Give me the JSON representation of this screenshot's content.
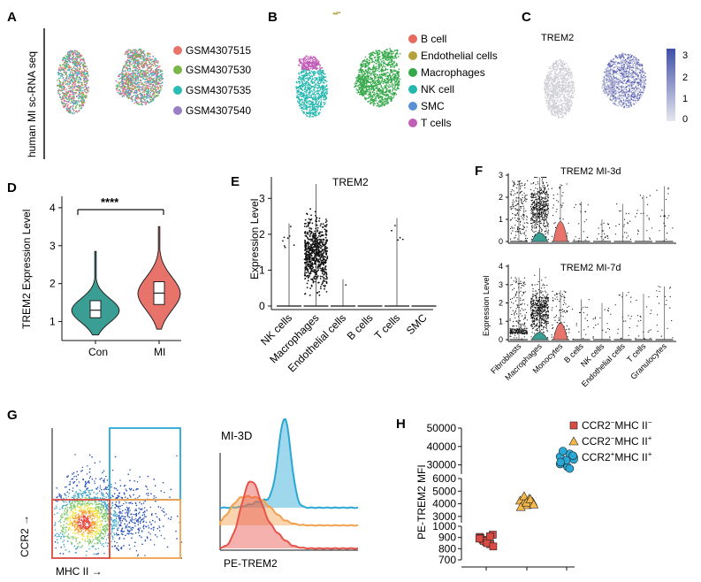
{
  "panel_labels": [
    "A",
    "B",
    "C",
    "D",
    "E",
    "F",
    "G",
    "H"
  ],
  "colors": {
    "s1": "#e8736b",
    "s2": "#7ab648",
    "s3": "#2bbcb3",
    "s4": "#9b7fc6",
    "bcell": "#e66a5e",
    "endo": "#b5a23a",
    "macro": "#35a94a",
    "nk": "#26b7b0",
    "smc": "#5b8fd6",
    "tcell": "#c25fb8",
    "con": "#3a9e95",
    "mi": "#e8736b",
    "h1": "#d84a43",
    "h2": "#f5b84a",
    "h3": "#2aa7d4"
  },
  "panel_a": {
    "ylabel": "human MI sc-RNA seq",
    "legend": [
      "GSM4307515",
      "GSM4307530",
      "GSM4307535",
      "GSM4307540"
    ]
  },
  "panel_b": {
    "legend": [
      "B cell",
      "Endothelial cells",
      "Macrophages",
      "NK cell",
      "SMC",
      "T cells"
    ]
  },
  "panel_c": {
    "title": "TREM2",
    "colorbar_ticks": [
      "3",
      "2",
      "1",
      "0"
    ]
  },
  "panel_d": {
    "ylabel": "TREM2 Expression Level",
    "significance": "****",
    "groups": [
      "Con",
      "MI"
    ]
  },
  "panel_e": {
    "title": "TREM2",
    "ylabel": "Expression Level",
    "categories": [
      "NK cells",
      "Macrophages",
      "Endothelial cells",
      "B cells",
      "T cells",
      "SMC"
    ]
  },
  "panel_f": {
    "title_top": "TREM2 MI-3d",
    "title_bottom": "TREM2 MI-7d",
    "ylabel": "Expression Level",
    "categories": [
      "Fibroblasts",
      "Macrophages",
      "Monocytes",
      "B cells",
      "NK cells",
      "Endothelial cells",
      "T cells",
      "Granulocytes"
    ]
  },
  "panel_g": {
    "ylabel": "CCR2 →",
    "xlabel": "MHC II →",
    "histo_title": "MI-3D",
    "histo_xlabel": "PE-TREM2"
  },
  "panel_h": {
    "ylabel": "PE-TREM2 MFI",
    "legend": [
      {
        "base": "CCR2",
        "sup1": "−",
        "mid": "MHC II",
        "sup2": "−"
      },
      {
        "base": "CCR2",
        "sup1": "−",
        "mid": "MHC II",
        "sup2": "+"
      },
      {
        "base": "CCR2",
        "sup1": "+",
        "mid": "MHC II",
        "sup2": "+"
      }
    ]
  },
  "chart_data": [
    {
      "type": "violin",
      "panel": "D",
      "title": "",
      "ylabel": "TREM2 Expression Level",
      "ylim": [
        0.5,
        4.3
      ],
      "yticks": [
        1,
        2,
        3,
        4
      ],
      "categories": [
        "Con",
        "MI"
      ],
      "medians": [
        1.3,
        1.75
      ],
      "q1": [
        1.1,
        1.45
      ],
      "q3": [
        1.55,
        2.05
      ],
      "min": [
        0.65,
        0.8
      ],
      "max": [
        2.85,
        3.5
      ]
    },
    {
      "type": "scatter",
      "panel": "E",
      "title": "TREM2",
      "ylabel": "Expression Level",
      "ylim": [
        0,
        3.5
      ],
      "yticks": [
        0,
        1,
        2,
        3
      ],
      "categories": [
        "NK cells",
        "Macrophages",
        "Endothelial cells",
        "B cells",
        "T cells",
        "SMC"
      ],
      "max": [
        2.3,
        3.4,
        0.75,
        0.0,
        2.45,
        0.0
      ],
      "center": [
        0.0,
        1.45,
        0.0,
        0.0,
        0.0,
        0.0
      ]
    },
    {
      "type": "scatter",
      "panel": "F",
      "title": "TREM2 MI-3d",
      "ylabel": "Expression Level",
      "ylim": [
        0,
        3
      ],
      "yticks": [
        0,
        1,
        2,
        3
      ],
      "categories": [
        "Fibroblasts",
        "Macrophages",
        "Monocytes",
        "B cells",
        "NK cells",
        "Endothelial cells",
        "T cells",
        "Granulocytes"
      ],
      "max": [
        2.75,
        2.9,
        2.6,
        1.8,
        1.0,
        1.7,
        2.1,
        2.5
      ]
    },
    {
      "type": "scatter",
      "panel": "F",
      "title": "TREM2 MI-7d",
      "ylabel": "Expression Level",
      "ylim": [
        0,
        4
      ],
      "yticks": [
        0,
        1,
        2,
        3,
        4
      ],
      "categories": [
        "Fibroblasts",
        "Macrophages",
        "Monocytes",
        "B cells",
        "NK cells",
        "Endothelial cells",
        "T cells",
        "Granulocytes"
      ],
      "max": [
        3.4,
        3.9,
        2.7,
        2.2,
        2.0,
        2.6,
        2.5,
        2.9
      ]
    },
    {
      "type": "scatter",
      "panel": "H",
      "title": "",
      "ylabel": "PE-TREM2 MFI",
      "segments": [
        {
          "ylim": [
            25000,
            50000
          ],
          "yticks": [
            30000,
            40000,
            50000
          ]
        },
        {
          "ylim": [
            2500,
            6000
          ],
          "yticks": [
            3000,
            4000,
            5000,
            6000
          ]
        },
        {
          "ylim": [
            700,
            1000
          ],
          "yticks": [
            700,
            800,
            900,
            1000
          ]
        }
      ],
      "ytick_labels_top": [
        "50000",
        "40000",
        "30000"
      ],
      "ytick_labels_mid": [
        "6000",
        "5000",
        "4000",
        "3000"
      ],
      "ytick_labels_bot": [
        "1000",
        "900",
        "800",
        "700"
      ],
      "series": [
        {
          "name": "CCR2−MHC II−",
          "values": [
            905,
            880,
            860,
            840,
            925,
            895,
            870,
            850,
            910,
            820,
            890
          ]
        },
        {
          "name": "CCR2−MHC II+",
          "values": [
            4250,
            4050,
            3900,
            4400,
            4150,
            3750,
            4600,
            4100,
            4350,
            3950
          ]
        },
        {
          "name": "CCR2+MHC II+",
          "values": [
            34500,
            31000,
            29000,
            36000,
            33000,
            30500,
            37500,
            32500,
            28000,
            35000,
            31500
          ]
        }
      ]
    }
  ]
}
